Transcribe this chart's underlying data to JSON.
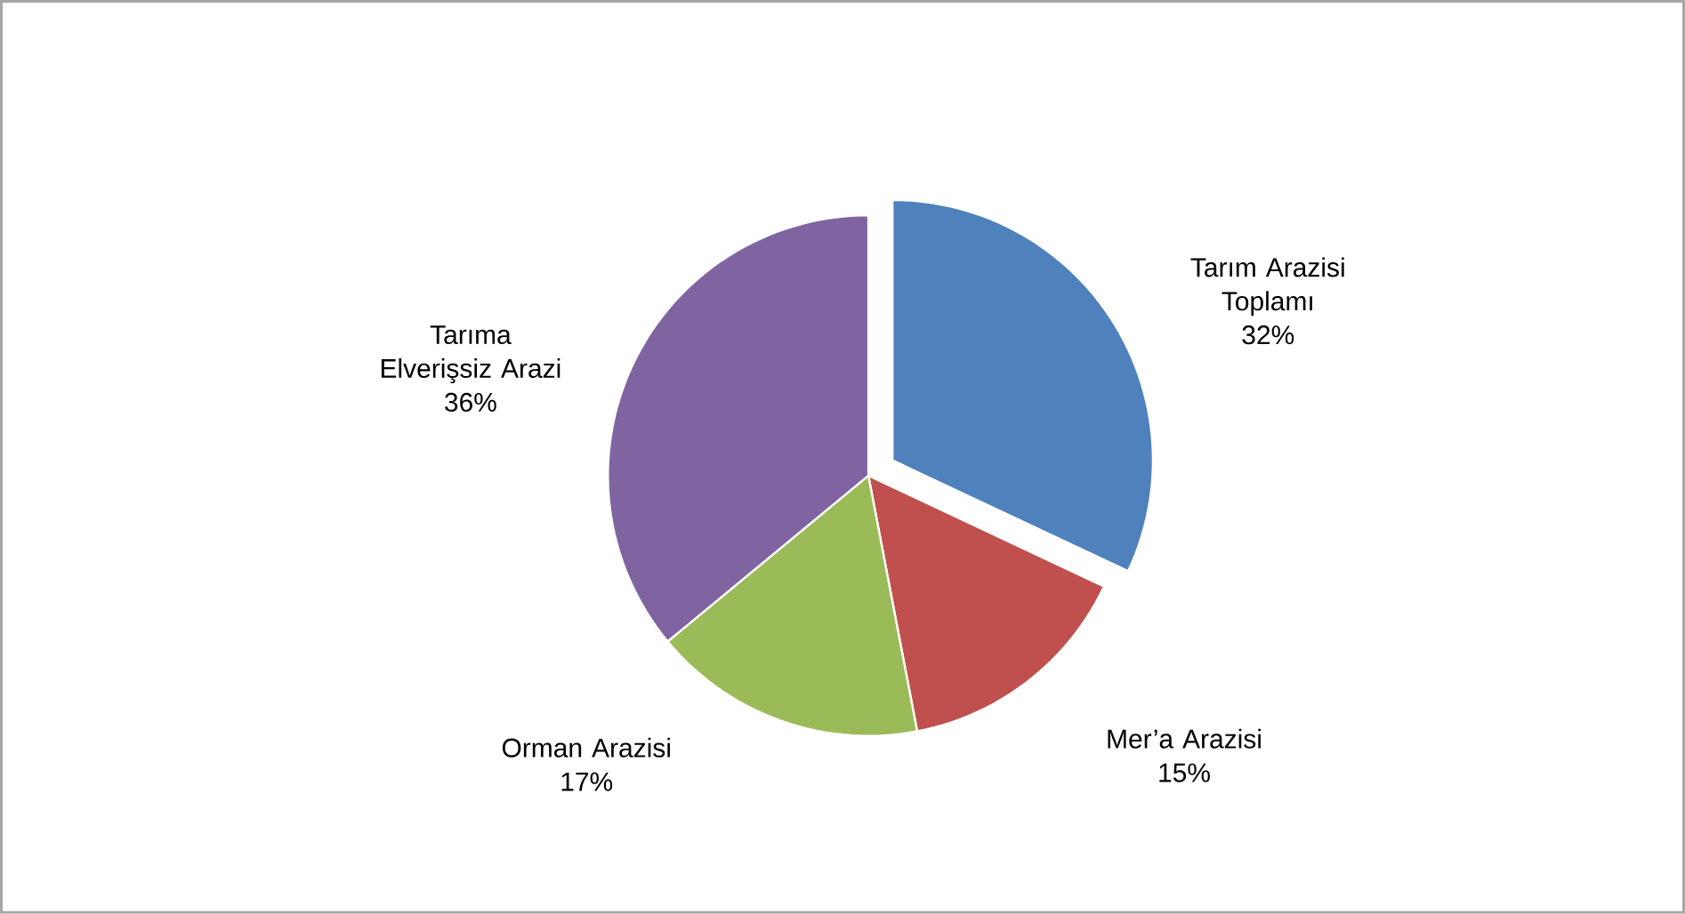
{
  "chart_data": {
    "type": "pie",
    "categories": [
      "Tarım Arazisi Toplamı",
      "Mer’a Arazisi",
      "Orman Arazisi",
      "Tarıma Elverişsiz Arazi"
    ],
    "values": [
      32,
      15,
      17,
      36
    ],
    "value_labels": [
      "32%",
      "15%",
      "17%",
      "36%"
    ],
    "colors": [
      "#4f81bd",
      "#c0504d",
      "#9bbb59",
      "#8064a2"
    ]
  }
}
